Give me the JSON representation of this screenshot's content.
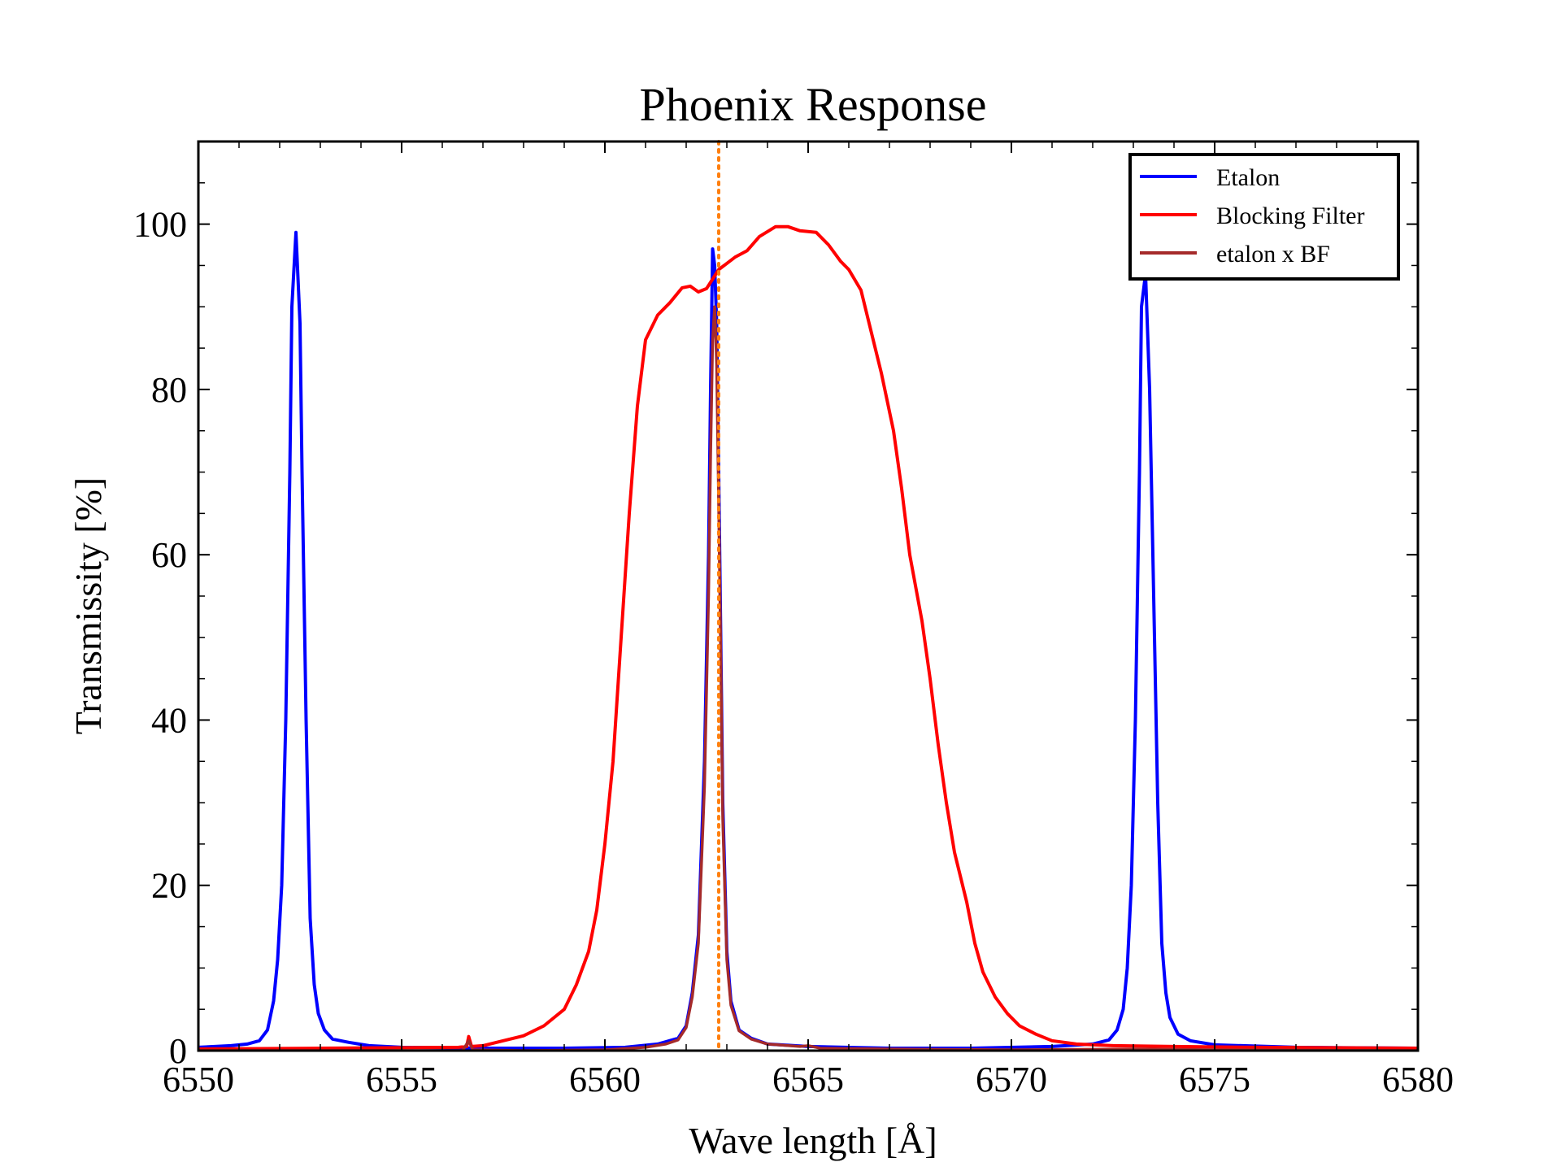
{
  "chart_data": {
    "type": "line",
    "title": "Phoenix Response",
    "xlabel": "Wave length [Å]",
    "ylabel": "Transmissity [%]",
    "xlim": [
      6550,
      6580
    ],
    "ylim": [
      0,
      110
    ],
    "x_ticks": [
      6550,
      6555,
      6560,
      6565,
      6570,
      6575,
      6580
    ],
    "y_ticks": [
      0,
      20,
      40,
      60,
      80,
      100
    ],
    "legend_position": "top-right",
    "reference_line": {
      "x": 6562.8,
      "color": "#ff7f0e",
      "style": "dotted"
    },
    "series": [
      {
        "name": "Etalon",
        "color": "#0000ff",
        "points": [
          [
            6550,
            0.4
          ],
          [
            6550.8,
            0.6
          ],
          [
            6551.2,
            0.8
          ],
          [
            6551.5,
            1.2
          ],
          [
            6551.7,
            2.5
          ],
          [
            6551.85,
            6
          ],
          [
            6551.95,
            11
          ],
          [
            6552.05,
            20
          ],
          [
            6552.15,
            40
          ],
          [
            6552.25,
            70
          ],
          [
            6552.3,
            90
          ],
          [
            6552.4,
            99
          ],
          [
            6552.5,
            88
          ],
          [
            6552.55,
            70
          ],
          [
            6552.65,
            40
          ],
          [
            6552.75,
            16
          ],
          [
            6552.85,
            8
          ],
          [
            6552.95,
            4.5
          ],
          [
            6553.1,
            2.5
          ],
          [
            6553.3,
            1.4
          ],
          [
            6553.7,
            1
          ],
          [
            6554.2,
            0.6
          ],
          [
            6555,
            0.4
          ],
          [
            6557,
            0.3
          ],
          [
            6559,
            0.3
          ],
          [
            6560.5,
            0.4
          ],
          [
            6561.3,
            0.8
          ],
          [
            6561.8,
            1.5
          ],
          [
            6562.0,
            3
          ],
          [
            6562.15,
            7
          ],
          [
            6562.3,
            14
          ],
          [
            6562.45,
            35
          ],
          [
            6562.55,
            60
          ],
          [
            6562.6,
            80
          ],
          [
            6562.65,
            97
          ],
          [
            6562.7,
            95
          ],
          [
            6562.75,
            88
          ],
          [
            6562.8,
            70
          ],
          [
            6562.85,
            50
          ],
          [
            6562.9,
            30
          ],
          [
            6563.0,
            12
          ],
          [
            6563.1,
            6
          ],
          [
            6563.3,
            2.5
          ],
          [
            6563.6,
            1.5
          ],
          [
            6564,
            0.8
          ],
          [
            6565,
            0.5
          ],
          [
            6567,
            0.3
          ],
          [
            6569,
            0.3
          ],
          [
            6571,
            0.5
          ],
          [
            6572,
            0.8
          ],
          [
            6572.4,
            1.3
          ],
          [
            6572.6,
            2.5
          ],
          [
            6572.75,
            5
          ],
          [
            6572.85,
            10
          ],
          [
            6572.95,
            20
          ],
          [
            6573.05,
            40
          ],
          [
            6573.15,
            70
          ],
          [
            6573.2,
            90
          ],
          [
            6573.3,
            94
          ],
          [
            6573.4,
            80
          ],
          [
            6573.5,
            55
          ],
          [
            6573.6,
            30
          ],
          [
            6573.7,
            13
          ],
          [
            6573.8,
            7
          ],
          [
            6573.9,
            4
          ],
          [
            6574.1,
            2
          ],
          [
            6574.4,
            1.2
          ],
          [
            6575,
            0.7
          ],
          [
            6577,
            0.4
          ],
          [
            6580,
            0.3
          ]
        ]
      },
      {
        "name": "Blocking Filter",
        "color": "#ff0000",
        "points": [
          [
            6550,
            0.2
          ],
          [
            6553,
            0.3
          ],
          [
            6556.4,
            0.4
          ],
          [
            6556.6,
            0.5
          ],
          [
            6556.65,
            1.7
          ],
          [
            6556.72,
            0.5
          ],
          [
            6557,
            0.6
          ],
          [
            6557.5,
            1.2
          ],
          [
            6558,
            1.8
          ],
          [
            6558.5,
            3
          ],
          [
            6559,
            5
          ],
          [
            6559.3,
            8
          ],
          [
            6559.6,
            12
          ],
          [
            6559.8,
            17
          ],
          [
            6560,
            25
          ],
          [
            6560.2,
            35
          ],
          [
            6560.4,
            50
          ],
          [
            6560.6,
            65
          ],
          [
            6560.8,
            78
          ],
          [
            6561,
            86
          ],
          [
            6561.3,
            89
          ],
          [
            6561.6,
            90.5
          ],
          [
            6561.9,
            92.3
          ],
          [
            6562.1,
            92.5
          ],
          [
            6562.3,
            91.8
          ],
          [
            6562.5,
            92.2
          ],
          [
            6562.8,
            94.5
          ],
          [
            6563.2,
            96
          ],
          [
            6563.5,
            96.8
          ],
          [
            6563.8,
            98.5
          ],
          [
            6564.2,
            99.7
          ],
          [
            6564.5,
            99.7
          ],
          [
            6564.8,
            99.2
          ],
          [
            6565.2,
            99
          ],
          [
            6565.5,
            97.5
          ],
          [
            6565.8,
            95.5
          ],
          [
            6566,
            94.5
          ],
          [
            6566.3,
            92
          ],
          [
            6566.5,
            88
          ],
          [
            6566.8,
            82
          ],
          [
            6567.1,
            75
          ],
          [
            6567.3,
            68
          ],
          [
            6567.5,
            60
          ],
          [
            6567.8,
            52
          ],
          [
            6568,
            45
          ],
          [
            6568.2,
            37
          ],
          [
            6568.4,
            30
          ],
          [
            6568.6,
            24
          ],
          [
            6568.9,
            18
          ],
          [
            6569.1,
            13
          ],
          [
            6569.3,
            9.5
          ],
          [
            6569.6,
            6.5
          ],
          [
            6569.9,
            4.5
          ],
          [
            6570.2,
            3
          ],
          [
            6570.6,
            2
          ],
          [
            6571,
            1.2
          ],
          [
            6571.6,
            0.8
          ],
          [
            6572.5,
            0.6
          ],
          [
            6574,
            0.5
          ],
          [
            6576,
            0.4
          ],
          [
            6580,
            0.3
          ]
        ]
      },
      {
        "name": "etalon x BF",
        "color": "#a52a2a",
        "points": [
          [
            6550,
            0.0
          ],
          [
            6556.5,
            0.0
          ],
          [
            6556.65,
            1.2
          ],
          [
            6556.75,
            0.1
          ],
          [
            6558,
            0.0
          ],
          [
            6560,
            0.1
          ],
          [
            6561,
            0.4
          ],
          [
            6561.5,
            0.8
          ],
          [
            6561.8,
            1.3
          ],
          [
            6562.0,
            2.8
          ],
          [
            6562.15,
            6.5
          ],
          [
            6562.3,
            13
          ],
          [
            6562.45,
            32
          ],
          [
            6562.55,
            55
          ],
          [
            6562.6,
            72
          ],
          [
            6562.65,
            86
          ],
          [
            6562.7,
            90
          ],
          [
            6562.75,
            83
          ],
          [
            6562.8,
            66
          ],
          [
            6562.85,
            48
          ],
          [
            6562.9,
            28
          ],
          [
            6563.0,
            11
          ],
          [
            6563.1,
            5.5
          ],
          [
            6563.3,
            2.4
          ],
          [
            6563.6,
            1.4
          ],
          [
            6564,
            0.8
          ],
          [
            6564.8,
            0.5
          ],
          [
            6565,
            0.6
          ],
          [
            6565.3,
            0.3
          ],
          [
            6567,
            0.2
          ],
          [
            6570,
            0.1
          ],
          [
            6573,
            0.2
          ],
          [
            6575,
            0.1
          ],
          [
            6580,
            0.0
          ]
        ]
      }
    ]
  }
}
